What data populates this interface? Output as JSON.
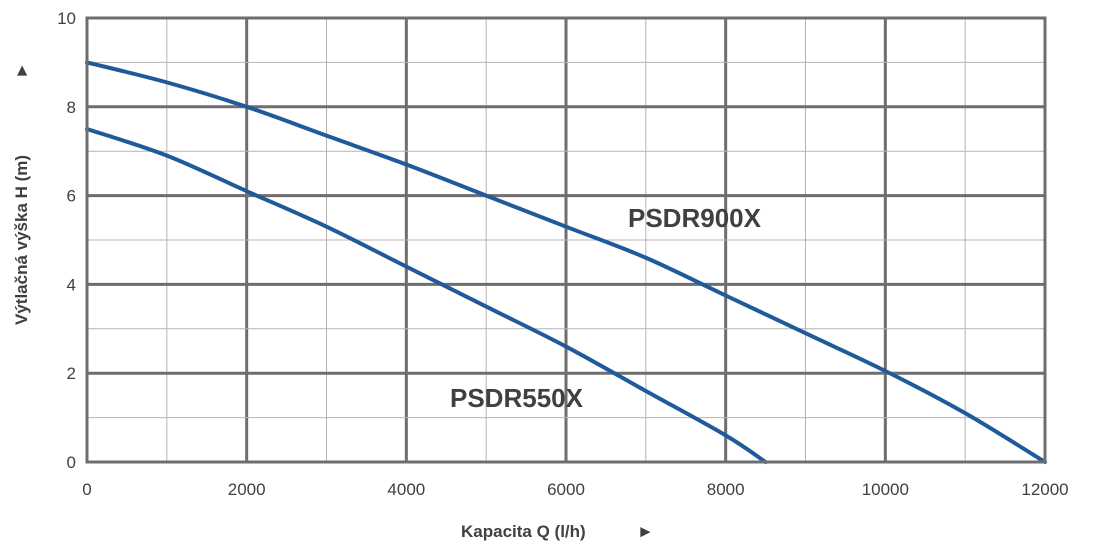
{
  "chart_data": {
    "type": "line",
    "title": "",
    "xlabel": "Kapacita Q (l/h)",
    "ylabel": "Výtlačná výška H (m)",
    "xlabel_arrow": "►",
    "ylabel_arrow": "►",
    "xlim": [
      0,
      12000
    ],
    "ylim": [
      0,
      10
    ],
    "x_ticks": [
      0,
      2000,
      4000,
      6000,
      8000,
      10000,
      12000
    ],
    "x_tick_labels": [
      "0",
      "2000",
      "4000",
      "6000",
      "8000",
      "10000",
      "12000"
    ],
    "y_ticks": [
      0,
      2,
      4,
      6,
      8,
      10
    ],
    "y_tick_labels": [
      "0",
      "2",
      "4",
      "6",
      "8",
      "10"
    ],
    "grid": {
      "major_x_step": 2000,
      "minor_x_step": 1000,
      "major_y_step": 2,
      "minor_y_step": 1
    },
    "legend": "none",
    "line_color": "#1f5a9a",
    "series": [
      {
        "name": "PSDR900X",
        "x": [
          0,
          1000,
          2000,
          3000,
          4000,
          5000,
          6000,
          7000,
          8000,
          9000,
          10000,
          11000,
          12000
        ],
        "y": [
          9.0,
          8.55,
          8.0,
          7.35,
          6.7,
          6.0,
          5.3,
          4.6,
          3.75,
          2.9,
          2.05,
          1.1,
          0.0
        ]
      },
      {
        "name": "PSDR550X",
        "x": [
          0,
          1000,
          2000,
          3000,
          4000,
          5000,
          6000,
          7000,
          8000,
          8500
        ],
        "y": [
          7.5,
          6.9,
          6.1,
          5.3,
          4.4,
          3.5,
          2.6,
          1.6,
          0.6,
          0.0
        ]
      }
    ]
  }
}
